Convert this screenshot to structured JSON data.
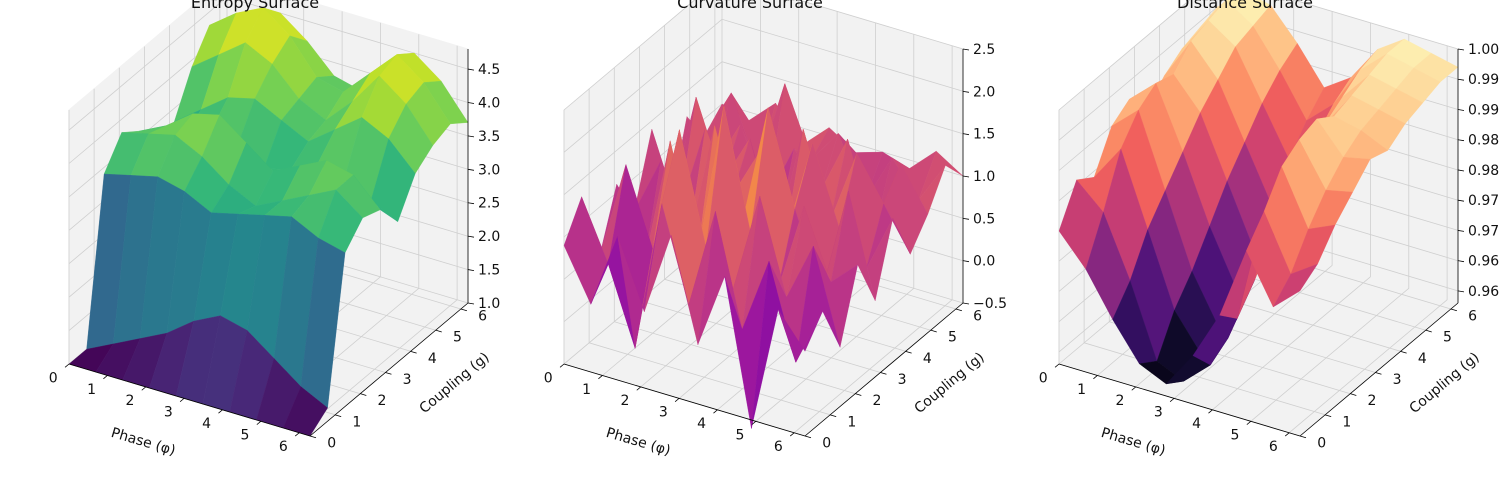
{
  "chart_data": [
    {
      "type": "surface3d",
      "title": "Entropy Surface",
      "xlabel": "Phase (φ)",
      "ylabel": "Coupling (g)",
      "zlabel": "",
      "colormap": "viridis",
      "xticks": [
        "0",
        "1",
        "2",
        "3",
        "4",
        "5",
        "6"
      ],
      "yticks": [
        "0",
        "1",
        "2",
        "3",
        "4",
        "5",
        "6"
      ],
      "zticks": [
        "1.0",
        "1.5",
        "2.0",
        "2.5",
        "3.0",
        "3.5",
        "4.0",
        "4.5"
      ],
      "xlim": [
        0,
        6.283
      ],
      "ylim": [
        0,
        6.283
      ],
      "zlim": [
        1.0,
        4.8
      ],
      "grid": true,
      "z": [
        [
          1.0,
          1.0,
          1.0,
          1.0,
          1.0,
          1.0,
          1.0,
          1.0,
          1.0,
          1.0
        ],
        [
          1.0,
          1.2,
          1.4,
          1.6,
          1.9,
          2.1,
          2.0,
          1.7,
          1.4,
          1.2
        ],
        [
          3.4,
          3.5,
          3.6,
          3.5,
          3.3,
          3.4,
          3.5,
          3.6,
          3.4,
          3.3
        ],
        [
          3.8,
          3.9,
          4.0,
          3.8,
          3.5,
          3.3,
          3.5,
          3.7,
          3.9,
          3.6
        ],
        [
          3.6,
          3.8,
          4.1,
          4.2,
          3.9,
          3.6,
          3.8,
          4.0,
          3.9,
          3.5
        ],
        [
          3.2,
          3.4,
          3.6,
          3.5,
          3.3,
          3.4,
          3.6,
          3.5,
          3.3,
          3.1
        ],
        [
          3.3,
          3.6,
          3.9,
          4.0,
          3.8,
          3.6,
          3.9,
          4.2,
          4.0,
          3.6
        ],
        [
          3.9,
          4.2,
          4.5,
          4.3,
          3.9,
          3.7,
          4.1,
          4.6,
          4.3,
          3.8
        ],
        [
          4.3,
          4.6,
          4.8,
          4.5,
          4.0,
          3.9,
          4.3,
          4.7,
          4.4,
          3.9
        ],
        [
          4.0,
          4.3,
          4.5,
          4.2,
          3.8,
          3.7,
          4.1,
          4.5,
          4.2,
          3.7
        ]
      ]
    },
    {
      "type": "surface3d",
      "title": "Curvature Surface",
      "xlabel": "Phase (φ)",
      "ylabel": "Coupling (g)",
      "zlabel": "",
      "colormap": "plasma",
      "xticks": [
        "0",
        "1",
        "2",
        "3",
        "4",
        "5",
        "6"
      ],
      "yticks": [
        "0",
        "1",
        "2",
        "3",
        "4",
        "5",
        "6"
      ],
      "zticks": [
        "−0.5",
        "0.0",
        "0.5",
        "1.0",
        "1.5",
        "2.0",
        "2.5"
      ],
      "xlim": [
        0,
        6.283
      ],
      "ylim": [
        0,
        6.283
      ],
      "zlim": [
        -0.5,
        2.5
      ],
      "grid": true,
      "z": [
        [
          0.9,
          0.3,
          1.2,
          0.4,
          1.4,
          0.2,
          1.1,
          -0.6,
          0.9,
          0.5
        ],
        [
          1.3,
          0.6,
          -0.3,
          1.5,
          0.4,
          1.6,
          0.3,
          1.2,
          0.1,
          0.8
        ],
        [
          0.4,
          1.6,
          0.7,
          2.2,
          0.9,
          0.5,
          1.7,
          0.6,
          1.3,
          0.2
        ],
        [
          1.1,
          0.2,
          1.8,
          0.5,
          2.4,
          1.0,
          0.4,
          1.5,
          0.7,
          1.0
        ],
        [
          0.6,
          1.3,
          0.4,
          1.9,
          0.8,
          2.3,
          1.2,
          0.3,
          1.6,
          0.4
        ],
        [
          1.4,
          0.5,
          1.6,
          0.9,
          1.5,
          0.6,
          1.8,
          0.9,
          0.5,
          1.2
        ],
        [
          0.3,
          1.7,
          0.8,
          1.4,
          0.3,
          1.7,
          0.7,
          1.6,
          1.1,
          0.6
        ],
        [
          1.2,
          0.7,
          1.3,
          0.5,
          1.2,
          0.8,
          1.5,
          0.5,
          1.4,
          0.9
        ],
        [
          0.8,
          1.4,
          0.6,
          1.7,
          0.9,
          1.3,
          0.6,
          1.2,
          0.8,
          1.3
        ],
        [
          1.0,
          0.9,
          1.2,
          0.8,
          1.1,
          0.9,
          1.0,
          0.9,
          1.2,
          1.0
        ]
      ]
    },
    {
      "type": "surface3d",
      "title": "Distance Surface",
      "xlabel": "Phase (φ)",
      "ylabel": "Coupling (g)",
      "zlabel": "",
      "colormap": "magma",
      "xticks": [
        "0",
        "1",
        "2",
        "3",
        "4",
        "5",
        "6"
      ],
      "yticks": [
        "0",
        "1",
        "2",
        "3",
        "4",
        "5",
        "6"
      ],
      "zticks": [
        "0.960",
        "0.965",
        "0.970",
        "0.975",
        "0.980",
        "0.985",
        "0.990",
        "0.995",
        "1.000"
      ],
      "xlim": [
        0,
        6.283
      ],
      "ylim": [
        0,
        6.283
      ],
      "zlim": [
        0.958,
        1.0
      ],
      "grid": true,
      "z": [
        [
          0.98,
          0.975,
          0.968,
          0.962,
          0.96,
          0.966,
          0.974,
          0.986,
          0.978,
          0.982
        ],
        [
          0.986,
          0.982,
          0.972,
          0.96,
          0.958,
          0.962,
          0.971,
          0.99,
          0.981,
          0.984
        ],
        [
          0.984,
          0.99,
          0.978,
          0.966,
          0.96,
          0.964,
          0.975,
          0.995,
          0.986,
          0.988
        ],
        [
          0.99,
          0.994,
          0.982,
          0.97,
          0.962,
          0.968,
          0.98,
          0.997,
          0.99,
          0.991
        ],
        [
          0.992,
          0.996,
          0.986,
          0.975,
          0.966,
          0.972,
          0.984,
          0.998,
          0.993,
          0.994
        ],
        [
          0.988,
          0.995,
          0.99,
          0.98,
          0.97,
          0.976,
          0.988,
          0.996,
          0.995,
          0.993
        ],
        [
          0.991,
          0.998,
          0.993,
          0.984,
          0.975,
          0.981,
          0.991,
          0.997,
          0.996,
          0.995
        ],
        [
          0.993,
          0.999,
          0.996,
          0.988,
          0.98,
          0.985,
          0.993,
          0.998,
          0.997,
          0.996
        ],
        [
          0.994,
          1.0,
          0.997,
          0.991,
          0.984,
          0.988,
          0.995,
          0.999,
          0.998,
          0.997
        ],
        [
          0.995,
          0.999,
          0.998,
          0.993,
          0.987,
          0.99,
          0.996,
          0.999,
          0.998,
          0.997
        ]
      ]
    }
  ]
}
